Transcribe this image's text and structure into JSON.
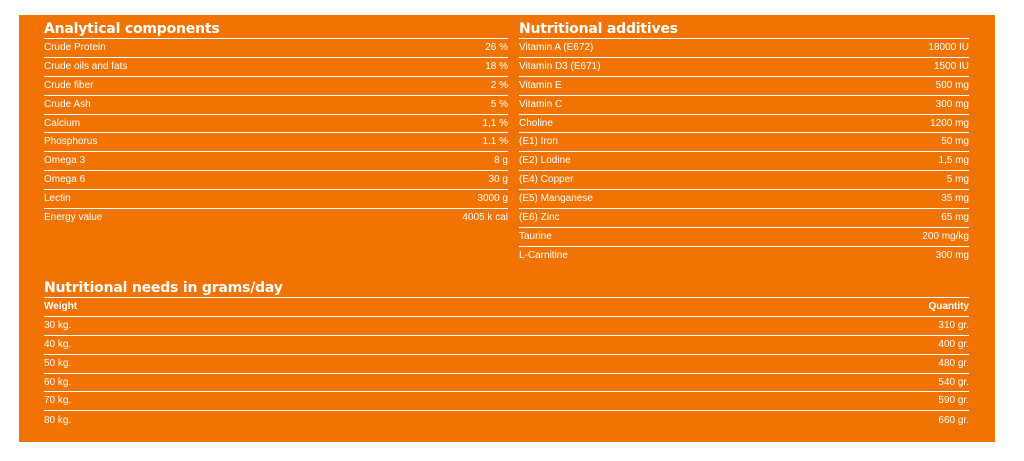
{
  "analytical": {
    "title": "Analytical components",
    "rows": [
      {
        "label": "Crude Protein",
        "value": "26 %"
      },
      {
        "label": "Crude oils and fats",
        "value": "18 %"
      },
      {
        "label": "Crude fiber",
        "value": "2 %"
      },
      {
        "label": "Crude Ash",
        "value": "5 %"
      },
      {
        "label": "Calcium",
        "value": "1,1 %"
      },
      {
        "label": "Phosphorus",
        "value": "1.1 %"
      },
      {
        "label": "Omega 3",
        "value": "8 g"
      },
      {
        "label": "Omega 6",
        "value": "30 g"
      },
      {
        "label": "Lectin",
        "value": "3000 g"
      },
      {
        "label": "Energy value",
        "value": "4005 k cal"
      }
    ]
  },
  "additives": {
    "title": "Nutritional additives",
    "rows": [
      {
        "label": "Vitamin A (E672)",
        "value": "18000 IU"
      },
      {
        "label": "Vitamin D3 (E671)",
        "value": "1500 IU"
      },
      {
        "label": "Vitamin E",
        "value": "500 mg"
      },
      {
        "label": "Vitamin C",
        "value": "300 mg"
      },
      {
        "label": "Choline",
        "value": "1200 mg"
      },
      {
        "label": "(E1) Iron",
        "value": "50 mg"
      },
      {
        "label": "(E2) Lodine",
        "value": "1,5 mg"
      },
      {
        "label": "(E4) Copper",
        "value": "5 mg"
      },
      {
        "label": "(E5) Manganese",
        "value": "35 mg"
      },
      {
        "label": "(E6) Zinc",
        "value": "65 mg"
      },
      {
        "label": "Taurine",
        "value": "200 mg/kg"
      },
      {
        "label": "L-Carnitine",
        "value": "300 mg"
      }
    ]
  },
  "needs": {
    "title": "Nutritional needs in grams/day",
    "header": {
      "weight": "Weight",
      "quantity": "Quantity"
    },
    "rows": [
      {
        "weight": "30 kg.",
        "quantity": "310 gr."
      },
      {
        "weight": "40 kg.",
        "quantity": "400 gr."
      },
      {
        "weight": "50 kg.",
        "quantity": "480 gr."
      },
      {
        "weight": "60 kg.",
        "quantity": "540 gr."
      },
      {
        "weight": "70 kg.",
        "quantity": "590 gr."
      },
      {
        "weight": "80 kg.",
        "quantity": "660 gr."
      }
    ]
  },
  "colors": {
    "panel": "#f07304",
    "text": "#ffffff"
  }
}
